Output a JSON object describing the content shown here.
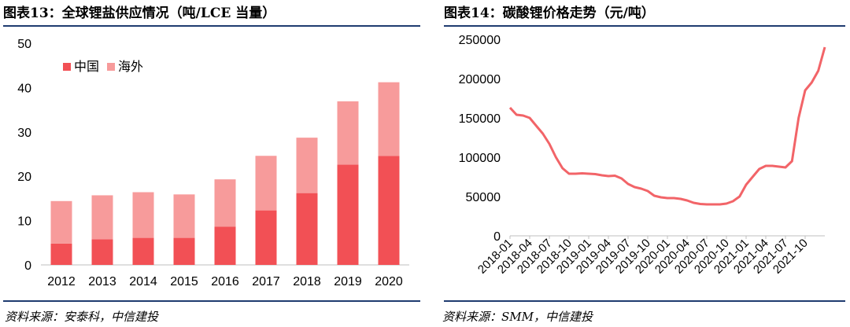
{
  "left_figure": {
    "title": "图表13：全球锂盐供应情况（吨/LCE 当量）",
    "source": "资料来源：安泰科，中信建投"
  },
  "right_figure": {
    "title": "图表14：碳酸锂价格走势（元/吨）",
    "source": "资料来源：SMM，中信建投"
  },
  "colors": {
    "china": "#f25055",
    "overseas": "#f79b9b",
    "line": "#f26468",
    "rule": "#1f3b70"
  },
  "chart_data": [
    {
      "type": "bar",
      "stacked": true,
      "categories": [
        "2012",
        "2013",
        "2014",
        "2015",
        "2016",
        "2017",
        "2018",
        "2019",
        "2020"
      ],
      "series": [
        {
          "name": "中国",
          "values": [
            4.8,
            5.8,
            6.1,
            6.1,
            8.6,
            12.3,
            16.2,
            22.6,
            24.6
          ]
        },
        {
          "name": "海外",
          "values": [
            9.6,
            9.9,
            10.3,
            9.8,
            10.7,
            12.3,
            12.5,
            14.3,
            16.6
          ]
        }
      ],
      "ylim": [
        0,
        50
      ],
      "yticks": [
        "0",
        "10",
        "20",
        "30",
        "40",
        "50"
      ],
      "legend_position": "top-left",
      "grid": false
    },
    {
      "type": "line",
      "series": [
        {
          "points": [
            [
              "2018-01",
              163000
            ],
            [
              "2018-02",
              154000
            ],
            [
              "2018-03",
              153000
            ],
            [
              "2018-04",
              150000
            ],
            [
              "2018-05",
              140000
            ],
            [
              "2018-06",
              130000
            ],
            [
              "2018-07",
              117000
            ],
            [
              "2018-08",
              100000
            ],
            [
              "2018-09",
              86000
            ],
            [
              "2018-10",
              79000
            ],
            [
              "2018-11",
              79000
            ],
            [
              "2018-12",
              79500
            ],
            [
              "2019-01",
              79000
            ],
            [
              "2019-02",
              78500
            ],
            [
              "2019-03",
              77000
            ],
            [
              "2019-04",
              76000
            ],
            [
              "2019-05",
              76500
            ],
            [
              "2019-06",
              73000
            ],
            [
              "2019-07",
              66000
            ],
            [
              "2019-08",
              62000
            ],
            [
              "2019-09",
              60000
            ],
            [
              "2019-10",
              57000
            ],
            [
              "2019-11",
              51000
            ],
            [
              "2019-12",
              49000
            ],
            [
              "2020-01",
              48000
            ],
            [
              "2020-02",
              48000
            ],
            [
              "2020-03",
              47000
            ],
            [
              "2020-04",
              45000
            ],
            [
              "2020-05",
              42000
            ],
            [
              "2020-06",
              40500
            ],
            [
              "2020-07",
              40000
            ],
            [
              "2020-08",
              40000
            ],
            [
              "2020-09",
              40000
            ],
            [
              "2020-10",
              41000
            ],
            [
              "2020-11",
              44000
            ],
            [
              "2020-12",
              50000
            ],
            [
              "2021-01",
              65000
            ],
            [
              "2021-02",
              75000
            ],
            [
              "2021-03",
              85000
            ],
            [
              "2021-04",
              89000
            ],
            [
              "2021-05",
              89000
            ],
            [
              "2021-06",
              88000
            ],
            [
              "2021-07",
              87000
            ],
            [
              "2021-08",
              95000
            ],
            [
              "2021-09",
              150000
            ],
            [
              "2021-10",
              185000
            ],
            [
              "2021-11",
              195000
            ],
            [
              "2021-12",
              210000
            ],
            [
              "2022-01",
              240000
            ]
          ]
        }
      ],
      "xtick_labels": [
        "2018-01",
        "2018-04",
        "2018-07",
        "2018-10",
        "2019-01",
        "2019-04",
        "2019-07",
        "2019-10",
        "2020-01",
        "2020-04",
        "2020-07",
        "2020-10",
        "2021-01",
        "2021-04",
        "2021-07",
        "2021-10"
      ],
      "yticks": [
        "0",
        "50000",
        "100000",
        "150000",
        "200000",
        "250000"
      ],
      "ylim": [
        0,
        250000
      ],
      "grid": false
    }
  ]
}
